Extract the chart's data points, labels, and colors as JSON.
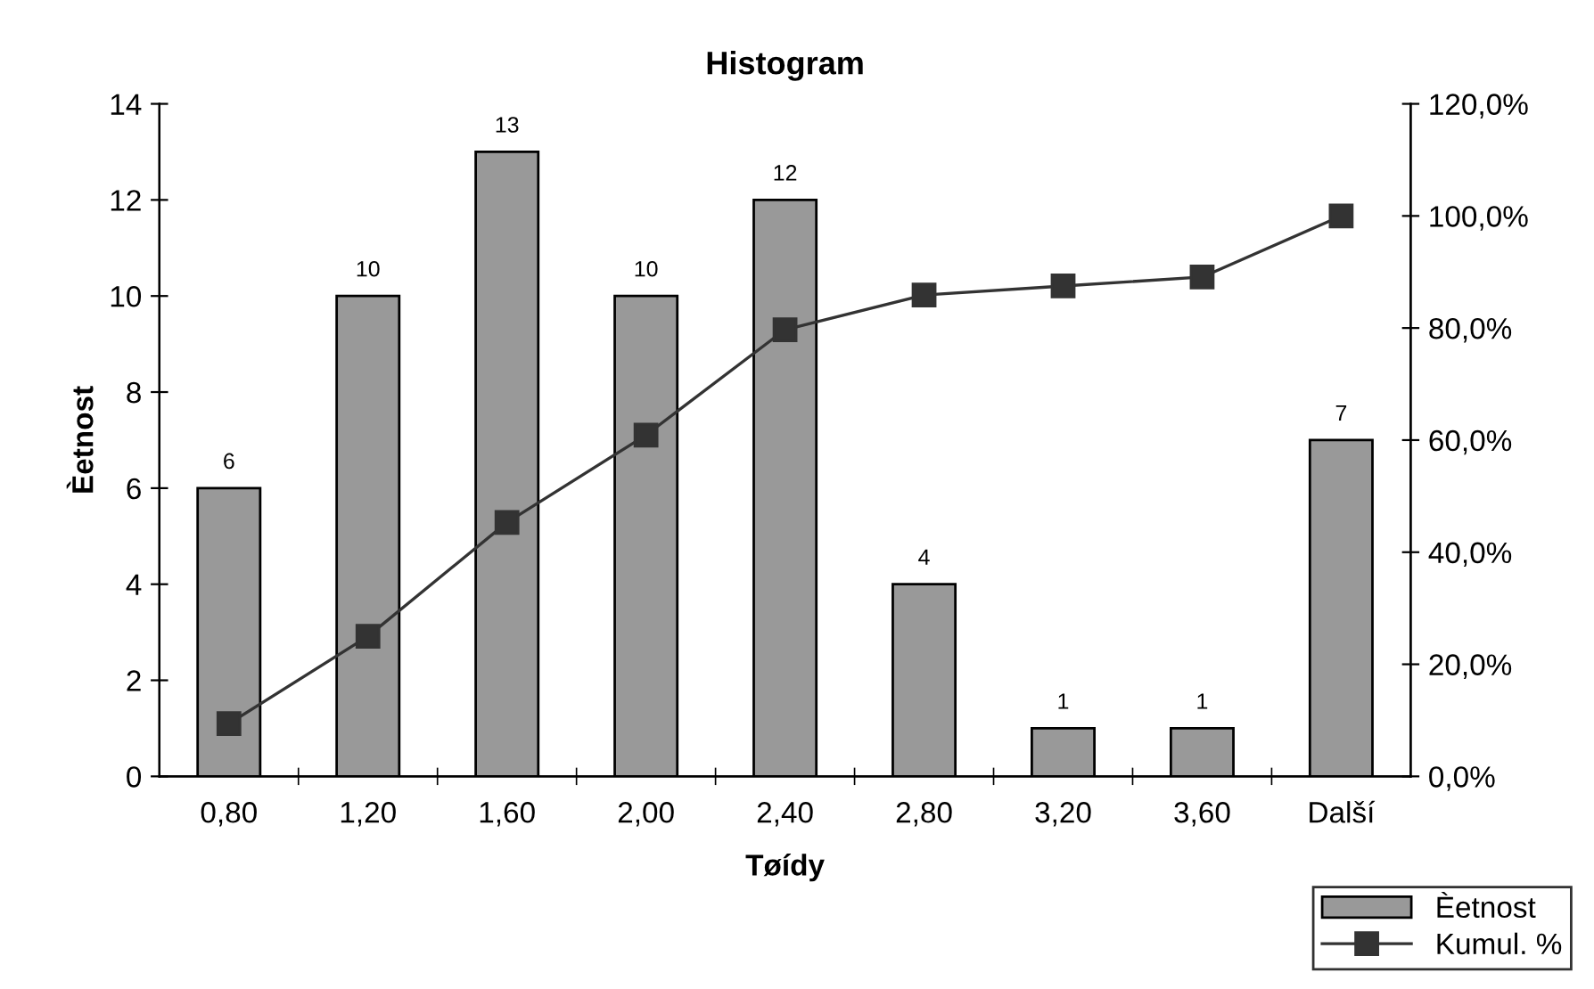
{
  "chart_data": {
    "type": "bar",
    "title": "Histogram",
    "xlabel": "Tøídy",
    "ylabel": "Èetnost",
    "categories": [
      "0,80",
      "1,20",
      "1,60",
      "2,00",
      "2,40",
      "2,80",
      "3,20",
      "3,60",
      "Další"
    ],
    "series": [
      {
        "name": "Èetnost",
        "color": "#999999",
        "values": [
          6,
          10,
          13,
          10,
          12,
          4,
          1,
          1,
          7
        ],
        "value_labels": [
          "6",
          "10",
          "13",
          "10",
          "12",
          "4",
          "1",
          "1",
          "7"
        ]
      },
      {
        "name": "Kumul. %",
        "type": "line",
        "axis": "y2",
        "color": "#333333",
        "marker": "square",
        "line_style": "solid",
        "values": [
          9.4,
          25.0,
          45.3,
          60.9,
          79.7,
          85.9,
          87.5,
          89.1,
          100.0
        ]
      }
    ],
    "ylim": [
      0,
      14
    ],
    "yticks": [
      0,
      2,
      4,
      6,
      8,
      10,
      12,
      14
    ],
    "y2lim": [
      0,
      120
    ],
    "y2ticks": [
      {
        "value": 0,
        "label": "0,0%"
      },
      {
        "value": 20,
        "label": "20,0%"
      },
      {
        "value": 40,
        "label": "40,0%"
      },
      {
        "value": 60,
        "label": "60,0%"
      },
      {
        "value": 80,
        "label": "80,0%"
      },
      {
        "value": 100,
        "label": "100,0%"
      },
      {
        "value": 120,
        "label": "120,0%"
      }
    ],
    "grid": false,
    "legend": "bottom right"
  }
}
